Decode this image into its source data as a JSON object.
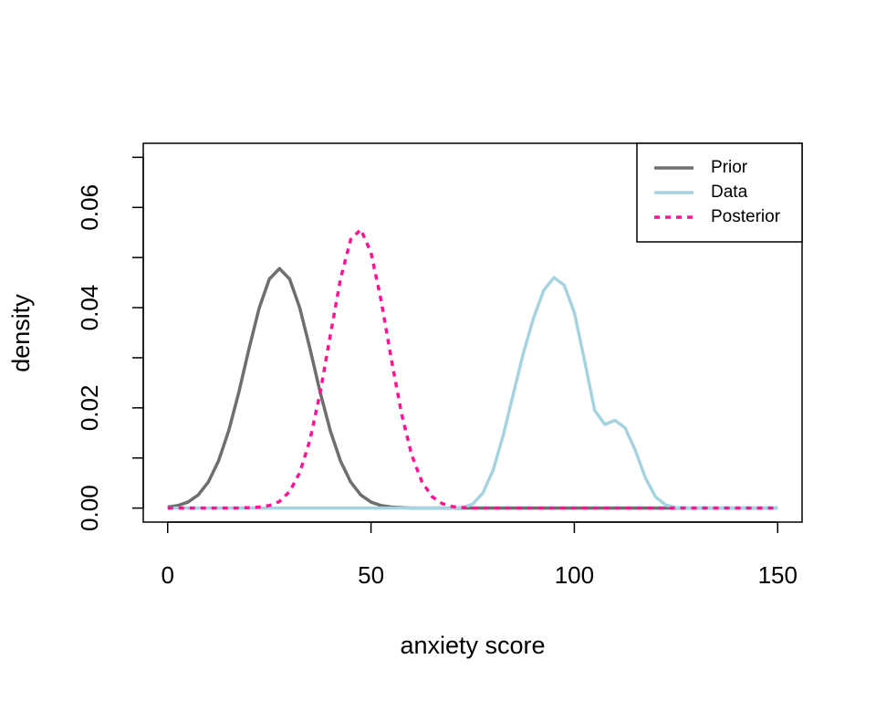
{
  "chart_data": {
    "type": "line",
    "xlabel": "anxiety score",
    "ylabel": "density",
    "x": [
      0,
      2.5,
      5,
      7.5,
      10,
      12.5,
      15,
      17.5,
      20,
      22.5,
      25,
      27.5,
      30,
      32.5,
      35,
      37.5,
      40,
      42.5,
      45,
      47.5,
      50,
      52.5,
      55,
      57.5,
      60,
      62.5,
      65,
      67.5,
      70,
      72.5,
      75,
      77.5,
      80,
      82.5,
      85,
      87.5,
      90,
      92.5,
      95,
      97.5,
      100,
      102.5,
      105,
      107.5,
      110,
      112.5,
      115,
      117.5,
      120,
      122.5,
      125,
      127.5,
      130,
      132.5,
      135,
      137.5,
      140,
      142.5,
      145,
      147.5,
      150
    ],
    "series": [
      {
        "name": "Prior",
        "color": "#6e6e6e",
        "linestyle": "solid",
        "values": [
          0.0002,
          0.0005,
          0.0012,
          0.0026,
          0.0052,
          0.0094,
          0.0154,
          0.0231,
          0.0318,
          0.0399,
          0.0457,
          0.0478,
          0.0457,
          0.0399,
          0.0318,
          0.0231,
          0.0154,
          0.0094,
          0.0052,
          0.0026,
          0.0012,
          0.0005,
          0.0002,
          0.0001,
          0,
          0,
          0,
          0,
          0,
          0,
          0,
          0,
          0,
          0,
          0,
          0,
          0,
          0,
          0,
          0,
          0,
          0,
          0,
          0,
          0,
          0,
          0,
          0,
          0,
          0,
          0,
          0,
          0,
          0,
          0,
          0,
          0,
          0,
          0,
          0,
          0
        ]
      },
      {
        "name": "Data",
        "color": "#a6d3e0",
        "linestyle": "solid",
        "values": [
          0,
          0,
          0,
          0,
          0,
          0,
          0,
          0,
          0,
          0,
          0,
          0,
          0,
          0,
          0,
          0,
          0,
          0,
          0,
          0,
          0,
          0,
          0,
          0,
          0,
          0,
          0,
          0,
          0,
          0.0001,
          0.0008,
          0.003,
          0.0075,
          0.0145,
          0.0228,
          0.031,
          0.038,
          0.0435,
          0.046,
          0.0445,
          0.039,
          0.0295,
          0.0195,
          0.0167,
          0.0175,
          0.016,
          0.0115,
          0.006,
          0.0022,
          0.0006,
          0.0001,
          0,
          0,
          0,
          0,
          0,
          0,
          0,
          0,
          0,
          0
        ]
      },
      {
        "name": "Posterior",
        "color": "#ff1493",
        "linestyle": "dashed",
        "values": [
          0,
          0,
          0,
          0,
          0,
          0,
          0,
          0,
          0.0001,
          0.0002,
          0.0005,
          0.0013,
          0.0033,
          0.0071,
          0.0136,
          0.023,
          0.0345,
          0.0457,
          0.0536,
          0.0556,
          0.051,
          0.0414,
          0.0297,
          0.0189,
          0.0106,
          0.0053,
          0.0023,
          0.0009,
          0.0003,
          0.0001,
          0,
          0,
          0,
          0,
          0,
          0,
          0,
          0,
          0,
          0,
          0,
          0,
          0,
          0,
          0,
          0,
          0,
          0,
          0,
          0,
          0,
          0,
          0,
          0,
          0,
          0,
          0,
          0,
          0,
          0,
          0
        ]
      }
    ],
    "xlim": [
      -6,
      156
    ],
    "xticks": [
      0,
      50,
      100,
      150
    ],
    "ylim": [
      -0.0028,
      0.0728
    ],
    "yticks": [
      {
        "value": 0,
        "label": "0.00"
      },
      {
        "value": 0.02,
        "label": "0.02"
      },
      {
        "value": 0.04,
        "label": "0.04"
      },
      {
        "value": 0.06,
        "label": "0.06"
      }
    ],
    "yminorticks": [
      0.01,
      0.03,
      0.05,
      0.07
    ],
    "legend": "topright",
    "grid": false
  }
}
